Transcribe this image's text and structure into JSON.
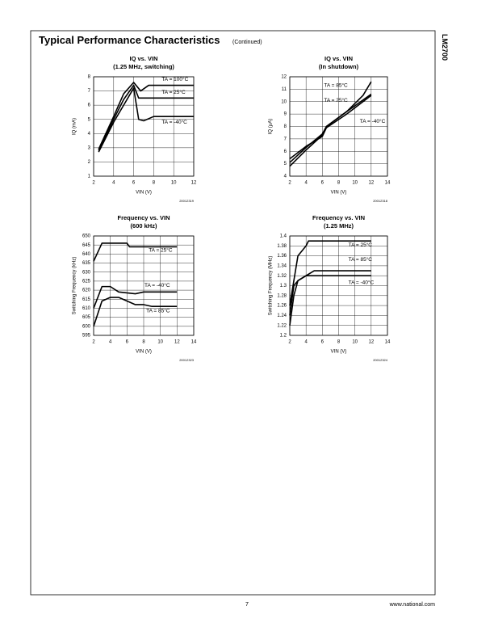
{
  "header": {
    "title": "Typical Performance Characteristics",
    "subtitle": "(Continued)",
    "side": "LM2700"
  },
  "footer": {
    "page": "7",
    "url": "www.national.com"
  },
  "chart_data": [
    {
      "type": "line",
      "title": "IQ vs. VIN",
      "subtitle": "(1.25 MHz, switching)",
      "x_label": "VIN (V)",
      "y_label": "IQ (mA)",
      "code": "20012319",
      "xlim": [
        2,
        12
      ],
      "xticks": [
        2,
        4,
        6,
        8,
        10,
        12
      ],
      "ylim": [
        1,
        8
      ],
      "yticks": [
        1,
        2,
        3,
        4,
        5,
        6,
        7,
        8
      ],
      "grid": true,
      "series": [
        {
          "name": "TA = 100°C",
          "color": "#000000",
          "x": [
            2.5,
            4,
            5,
            6,
            6.7,
            7.5,
            12
          ],
          "values": [
            2.9,
            5.2,
            6.8,
            7.6,
            7.0,
            7.4,
            7.4
          ]
        },
        {
          "name": "TA = 25°C",
          "color": "#000000",
          "x": [
            2.5,
            4,
            5,
            6,
            6.5,
            7.5,
            12
          ],
          "values": [
            2.8,
            5.0,
            6.4,
            7.4,
            6.5,
            6.5,
            6.5
          ]
        },
        {
          "name": "TA = -40°C",
          "color": "#000000",
          "x": [
            2.5,
            4,
            5,
            6,
            6.5,
            7,
            8,
            12
          ],
          "values": [
            2.7,
            4.8,
            6.0,
            7.2,
            5.0,
            4.9,
            5.2,
            5.2
          ]
        }
      ]
    },
    {
      "type": "line",
      "title": "IQ vs. VIN",
      "subtitle": "(In shutdown)",
      "x_label": "VIN (V)",
      "y_label": "IQ (µA)",
      "code": "20012318",
      "xlim": [
        2,
        14
      ],
      "xticks": [
        2,
        4,
        6,
        8,
        10,
        12,
        14
      ],
      "ylim": [
        4,
        12
      ],
      "yticks": [
        4,
        5,
        6,
        7,
        8,
        9,
        10,
        11,
        12
      ],
      "grid": true,
      "series": [
        {
          "name": "TA = 85°C",
          "color": "#000000",
          "x": [
            2,
            4,
            6,
            6.5,
            9,
            11,
            12
          ],
          "values": [
            5.1,
            6.3,
            7.4,
            8.0,
            9.2,
            10.5,
            11.6
          ]
        },
        {
          "name": "TA = 25°C",
          "color": "#000000",
          "x": [
            2,
            4,
            6,
            6.5,
            9,
            12
          ],
          "values": [
            4.8,
            6.1,
            7.3,
            8.0,
            9.2,
            10.6
          ]
        },
        {
          "name": "TA = -40°C",
          "color": "#000000",
          "x": [
            2,
            4,
            6,
            6.5,
            9,
            12
          ],
          "values": [
            5.4,
            6.4,
            7.2,
            7.9,
            9.0,
            10.5
          ]
        }
      ]
    },
    {
      "type": "line",
      "title": "Frequency vs. VIN",
      "subtitle": "(600 kHz)",
      "x_label": "VIN (V)",
      "y_label": "Switching Frequency (kHz)",
      "code": "20012323",
      "xlim": [
        2,
        14
      ],
      "xticks": [
        2,
        4,
        6,
        8,
        10,
        12,
        14
      ],
      "ylim": [
        595,
        650
      ],
      "yticks": [
        595,
        600,
        605,
        610,
        615,
        620,
        625,
        630,
        635,
        640,
        645,
        650
      ],
      "grid": true,
      "series": [
        {
          "name": "TA = 25°C",
          "color": "#000000",
          "x": [
            2,
            3,
            6,
            6.3,
            12
          ],
          "values": [
            636,
            646,
            646,
            644,
            644
          ]
        },
        {
          "name": "TA = -40°C",
          "color": "#000000",
          "x": [
            2,
            3,
            4,
            5,
            7,
            8,
            12
          ],
          "values": [
            610,
            622,
            622,
            619,
            618,
            619,
            619
          ]
        },
        {
          "name": "TA = 85°C",
          "color": "#000000",
          "x": [
            2,
            3,
            4,
            5,
            7,
            8,
            9,
            12
          ],
          "values": [
            600,
            614,
            616,
            616,
            612,
            612,
            611,
            611
          ]
        }
      ]
    },
    {
      "type": "line",
      "title": "Frequency vs. VIN",
      "subtitle": "(1.25 MHz)",
      "x_label": "VIN (V)",
      "y_label": "Switching Frequency (MHz)",
      "code": "20012324",
      "xlim": [
        2,
        14
      ],
      "xticks": [
        2,
        4,
        6,
        8,
        10,
        12,
        14
      ],
      "ylim": [
        1.2,
        1.4
      ],
      "yticks": [
        1.2,
        1.22,
        1.24,
        1.26,
        1.28,
        1.3,
        1.32,
        1.34,
        1.36,
        1.38,
        1.4
      ],
      "grid": true,
      "series": [
        {
          "name": "TA = 25°C",
          "color": "#000000",
          "x": [
            2,
            3,
            4,
            4.3,
            12
          ],
          "values": [
            1.26,
            1.36,
            1.38,
            1.39,
            1.39
          ]
        },
        {
          "name": "TA = 85°C",
          "color": "#000000",
          "x": [
            2,
            2.5,
            3,
            4,
            5,
            12
          ],
          "values": [
            1.24,
            1.3,
            1.31,
            1.32,
            1.33,
            1.33
          ]
        },
        {
          "name": "TA = -40°C",
          "color": "#000000",
          "x": [
            2,
            2.5,
            3,
            4,
            12
          ],
          "values": [
            1.22,
            1.28,
            1.31,
            1.32,
            1.32
          ]
        }
      ]
    }
  ]
}
